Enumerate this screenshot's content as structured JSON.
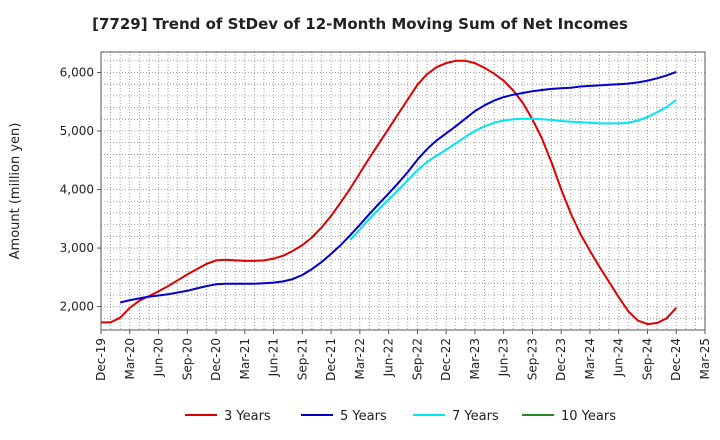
{
  "chart_data": {
    "type": "line",
    "title": "[7729]  Trend of StDev of 12-Month Moving Sum of Net Incomes",
    "xlabel": "",
    "ylabel": "Amount (million yen)",
    "x_ticks": [
      "Dec-19",
      "Mar-20",
      "Jun-20",
      "Sep-20",
      "Dec-20",
      "Mar-21",
      "Jun-21",
      "Sep-21",
      "Dec-21",
      "Mar-22",
      "Jun-22",
      "Sep-22",
      "Dec-22",
      "Mar-23",
      "Jun-23",
      "Sep-23",
      "Dec-23",
      "Mar-24",
      "Jun-24",
      "Sep-24",
      "Dec-24",
      "Mar-25"
    ],
    "y_ticks": [
      2000,
      3000,
      4000,
      5000,
      6000
    ],
    "y_tick_labels": [
      "2,000",
      "3,000",
      "4,000",
      "5,000",
      "6,000"
    ],
    "ylim": [
      1600,
      6350
    ],
    "grid": true,
    "legend_position": "bottom",
    "series": [
      {
        "name": "3 Years",
        "color": "#dd0000",
        "points": [
          [
            "Dec-19",
            1730
          ],
          [
            "Jan-20",
            1730
          ],
          [
            "Feb-20",
            1810
          ],
          [
            "Mar-20",
            1980
          ],
          [
            "Apr-20",
            2100
          ],
          [
            "May-20",
            2180
          ],
          [
            "Jun-20",
            2260
          ],
          [
            "Jul-20",
            2350
          ],
          [
            "Aug-20",
            2450
          ],
          [
            "Sep-20",
            2550
          ],
          [
            "Oct-20",
            2640
          ],
          [
            "Nov-20",
            2730
          ],
          [
            "Dec-20",
            2790
          ],
          [
            "Jan-21",
            2800
          ],
          [
            "Feb-21",
            2790
          ],
          [
            "Mar-21",
            2780
          ],
          [
            "Apr-21",
            2780
          ],
          [
            "May-21",
            2790
          ],
          [
            "Jun-21",
            2820
          ],
          [
            "Jul-21",
            2870
          ],
          [
            "Aug-21",
            2950
          ],
          [
            "Sep-21",
            3050
          ],
          [
            "Oct-21",
            3180
          ],
          [
            "Nov-21",
            3350
          ],
          [
            "Dec-21",
            3550
          ],
          [
            "Jan-22",
            3780
          ],
          [
            "Feb-22",
            4020
          ],
          [
            "Mar-22",
            4280
          ],
          [
            "Apr-22",
            4540
          ],
          [
            "May-22",
            4790
          ],
          [
            "Jun-22",
            5040
          ],
          [
            "Jul-22",
            5290
          ],
          [
            "Aug-22",
            5540
          ],
          [
            "Sep-22",
            5790
          ],
          [
            "Oct-22",
            5970
          ],
          [
            "Nov-22",
            6090
          ],
          [
            "Dec-22",
            6160
          ],
          [
            "Jan-23",
            6200
          ],
          [
            "Feb-23",
            6200
          ],
          [
            "Mar-23",
            6160
          ],
          [
            "Apr-23",
            6080
          ],
          [
            "May-23",
            5980
          ],
          [
            "Jun-23",
            5860
          ],
          [
            "Jul-23",
            5690
          ],
          [
            "Aug-23",
            5480
          ],
          [
            "Sep-23",
            5200
          ],
          [
            "Oct-23",
            4870
          ],
          [
            "Nov-23",
            4460
          ],
          [
            "Dec-23",
            4000
          ],
          [
            "Jan-24",
            3590
          ],
          [
            "Feb-24",
            3240
          ],
          [
            "Mar-24",
            2950
          ],
          [
            "Apr-24",
            2680
          ],
          [
            "May-24",
            2420
          ],
          [
            "Jun-24",
            2160
          ],
          [
            "Jul-24",
            1920
          ],
          [
            "Aug-24",
            1760
          ],
          [
            "Sep-24",
            1700
          ],
          [
            "Oct-24",
            1720
          ],
          [
            "Nov-24",
            1800
          ],
          [
            "Dec-24",
            1980
          ]
        ]
      },
      {
        "name": "5 Years",
        "color": "#0000cc",
        "points": [
          [
            "Feb-20",
            2070
          ],
          [
            "Mar-20",
            2110
          ],
          [
            "Apr-20",
            2140
          ],
          [
            "May-20",
            2170
          ],
          [
            "Jun-20",
            2190
          ],
          [
            "Jul-20",
            2210
          ],
          [
            "Aug-20",
            2240
          ],
          [
            "Sep-20",
            2270
          ],
          [
            "Oct-20",
            2310
          ],
          [
            "Nov-20",
            2350
          ],
          [
            "Dec-20",
            2380
          ],
          [
            "Jan-21",
            2390
          ],
          [
            "Feb-21",
            2390
          ],
          [
            "Mar-21",
            2390
          ],
          [
            "Apr-21",
            2390
          ],
          [
            "May-21",
            2400
          ],
          [
            "Jun-21",
            2410
          ],
          [
            "Jul-21",
            2430
          ],
          [
            "Aug-21",
            2470
          ],
          [
            "Sep-21",
            2540
          ],
          [
            "Oct-21",
            2640
          ],
          [
            "Nov-21",
            2760
          ],
          [
            "Dec-21",
            2900
          ],
          [
            "Jan-22",
            3050
          ],
          [
            "Feb-22",
            3220
          ],
          [
            "Mar-22",
            3400
          ],
          [
            "Apr-22",
            3580
          ],
          [
            "May-22",
            3760
          ],
          [
            "Jun-22",
            3930
          ],
          [
            "Jul-22",
            4110
          ],
          [
            "Aug-22",
            4300
          ],
          [
            "Sep-22",
            4510
          ],
          [
            "Oct-22",
            4690
          ],
          [
            "Nov-22",
            4840
          ],
          [
            "Dec-22",
            4960
          ],
          [
            "Jan-23",
            5080
          ],
          [
            "Feb-23",
            5210
          ],
          [
            "Mar-23",
            5340
          ],
          [
            "Apr-23",
            5440
          ],
          [
            "May-23",
            5520
          ],
          [
            "Jun-23",
            5580
          ],
          [
            "Jul-23",
            5620
          ],
          [
            "Aug-23",
            5650
          ],
          [
            "Sep-23",
            5680
          ],
          [
            "Oct-23",
            5700
          ],
          [
            "Nov-23",
            5720
          ],
          [
            "Dec-23",
            5730
          ],
          [
            "Jan-24",
            5740
          ],
          [
            "Feb-24",
            5760
          ],
          [
            "Mar-24",
            5770
          ],
          [
            "Apr-24",
            5780
          ],
          [
            "May-24",
            5790
          ],
          [
            "Jun-24",
            5800
          ],
          [
            "Jul-24",
            5810
          ],
          [
            "Aug-24",
            5830
          ],
          [
            "Sep-24",
            5860
          ],
          [
            "Oct-24",
            5900
          ],
          [
            "Nov-24",
            5950
          ],
          [
            "Dec-24",
            6010
          ]
        ]
      },
      {
        "name": "7 Years",
        "color": "#00e5ee",
        "points": [
          [
            "Feb-22",
            3140
          ],
          [
            "Mar-22",
            3320
          ],
          [
            "Apr-22",
            3500
          ],
          [
            "May-22",
            3670
          ],
          [
            "Jun-22",
            3830
          ],
          [
            "Jul-22",
            3990
          ],
          [
            "Aug-22",
            4160
          ],
          [
            "Sep-22",
            4330
          ],
          [
            "Oct-22",
            4470
          ],
          [
            "Nov-22",
            4580
          ],
          [
            "Dec-22",
            4680
          ],
          [
            "Jan-23",
            4790
          ],
          [
            "Feb-23",
            4900
          ],
          [
            "Mar-23",
            5000
          ],
          [
            "Apr-23",
            5080
          ],
          [
            "May-23",
            5140
          ],
          [
            "Jun-23",
            5180
          ],
          [
            "Jul-23",
            5200
          ],
          [
            "Aug-23",
            5210
          ],
          [
            "Sep-23",
            5210
          ],
          [
            "Oct-23",
            5200
          ],
          [
            "Nov-23",
            5190
          ],
          [
            "Dec-23",
            5170
          ],
          [
            "Jan-24",
            5160
          ],
          [
            "Feb-24",
            5150
          ],
          [
            "Mar-24",
            5140
          ],
          [
            "Apr-24",
            5130
          ],
          [
            "May-24",
            5130
          ],
          [
            "Jun-24",
            5130
          ],
          [
            "Jul-24",
            5140
          ],
          [
            "Aug-24",
            5180
          ],
          [
            "Sep-24",
            5240
          ],
          [
            "Oct-24",
            5320
          ],
          [
            "Nov-24",
            5410
          ],
          [
            "Dec-24",
            5530
          ]
        ]
      },
      {
        "name": "10 Years",
        "color": "#228b22",
        "points": []
      }
    ]
  }
}
